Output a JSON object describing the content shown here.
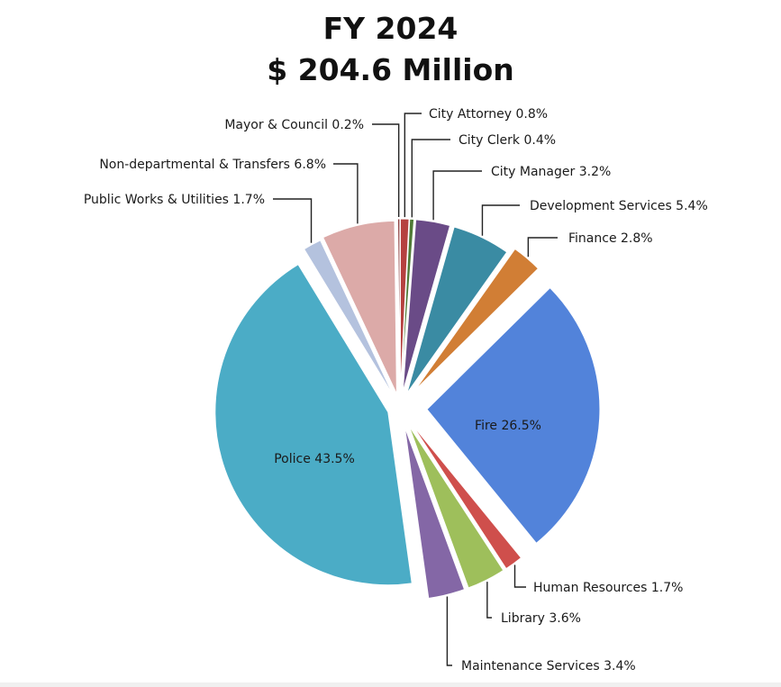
{
  "chart_data": {
    "type": "pie",
    "title": "FY 2024",
    "subtitle": "$ 204.6 Million",
    "slices": [
      {
        "label": "City Attorney 0.8%",
        "value": 0.8,
        "color": "#b5413f"
      },
      {
        "label": "City Clerk 0.4%",
        "value": 0.4,
        "color": "#4f7a35"
      },
      {
        "label": "City Manager 3.2%",
        "value": 3.2,
        "color": "#6a4b87"
      },
      {
        "label": "Development Services 5.4%",
        "value": 5.4,
        "color": "#3a8ba3"
      },
      {
        "label": "Finance 2.8%",
        "value": 2.8,
        "color": "#d17e35"
      },
      {
        "label": "Fire 26.5%",
        "value": 26.5,
        "color": "#5283da"
      },
      {
        "label": "Human Resources 1.7%",
        "value": 1.7,
        "color": "#cf4f4c"
      },
      {
        "label": "Library 3.6%",
        "value": 3.6,
        "color": "#9ebf5b"
      },
      {
        "label": "Maintenance Services 3.4%",
        "value": 3.4,
        "color": "#8467a6"
      },
      {
        "label": "Police 43.5%",
        "value": 43.5,
        "color": "#4bacc6"
      },
      {
        "label": "Public Works & Utilities 1.7%",
        "value": 1.7,
        "color": "#b4c2de"
      },
      {
        "label": "Non-departmental & Transfers 6.8%",
        "value": 6.8,
        "color": "#dcaaa8"
      },
      {
        "label": "Mayor & Council 0.2%",
        "value": 0.2,
        "color": "#8c3b3b"
      }
    ]
  }
}
